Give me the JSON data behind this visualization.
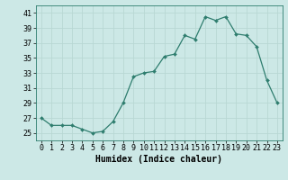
{
  "x": [
    0,
    1,
    2,
    3,
    4,
    5,
    6,
    7,
    8,
    9,
    10,
    11,
    12,
    13,
    14,
    15,
    16,
    17,
    18,
    19,
    20,
    21,
    22,
    23
  ],
  "y": [
    27,
    26,
    26,
    26,
    25.5,
    25,
    25.2,
    26.5,
    29,
    32.5,
    33,
    33.2,
    35.2,
    35.5,
    38,
    37.5,
    40.5,
    40,
    40.5,
    38.2,
    38,
    36.5,
    32,
    29
  ],
  "xlabel": "Humidex (Indice chaleur)",
  "line_color": "#2e7d6e",
  "marker_color": "#2e7d6e",
  "bg_color": "#cce8e6",
  "grid_color": "#b8d8d4",
  "ylim": [
    24,
    42
  ],
  "xlim": [
    -0.5,
    23.5
  ],
  "yticks": [
    25,
    27,
    29,
    31,
    33,
    35,
    37,
    39,
    41
  ],
  "xticks": [
    0,
    1,
    2,
    3,
    4,
    5,
    6,
    7,
    8,
    9,
    10,
    11,
    12,
    13,
    14,
    15,
    16,
    17,
    18,
    19,
    20,
    21,
    22,
    23
  ],
  "tick_fontsize": 6,
  "xlabel_fontsize": 7
}
